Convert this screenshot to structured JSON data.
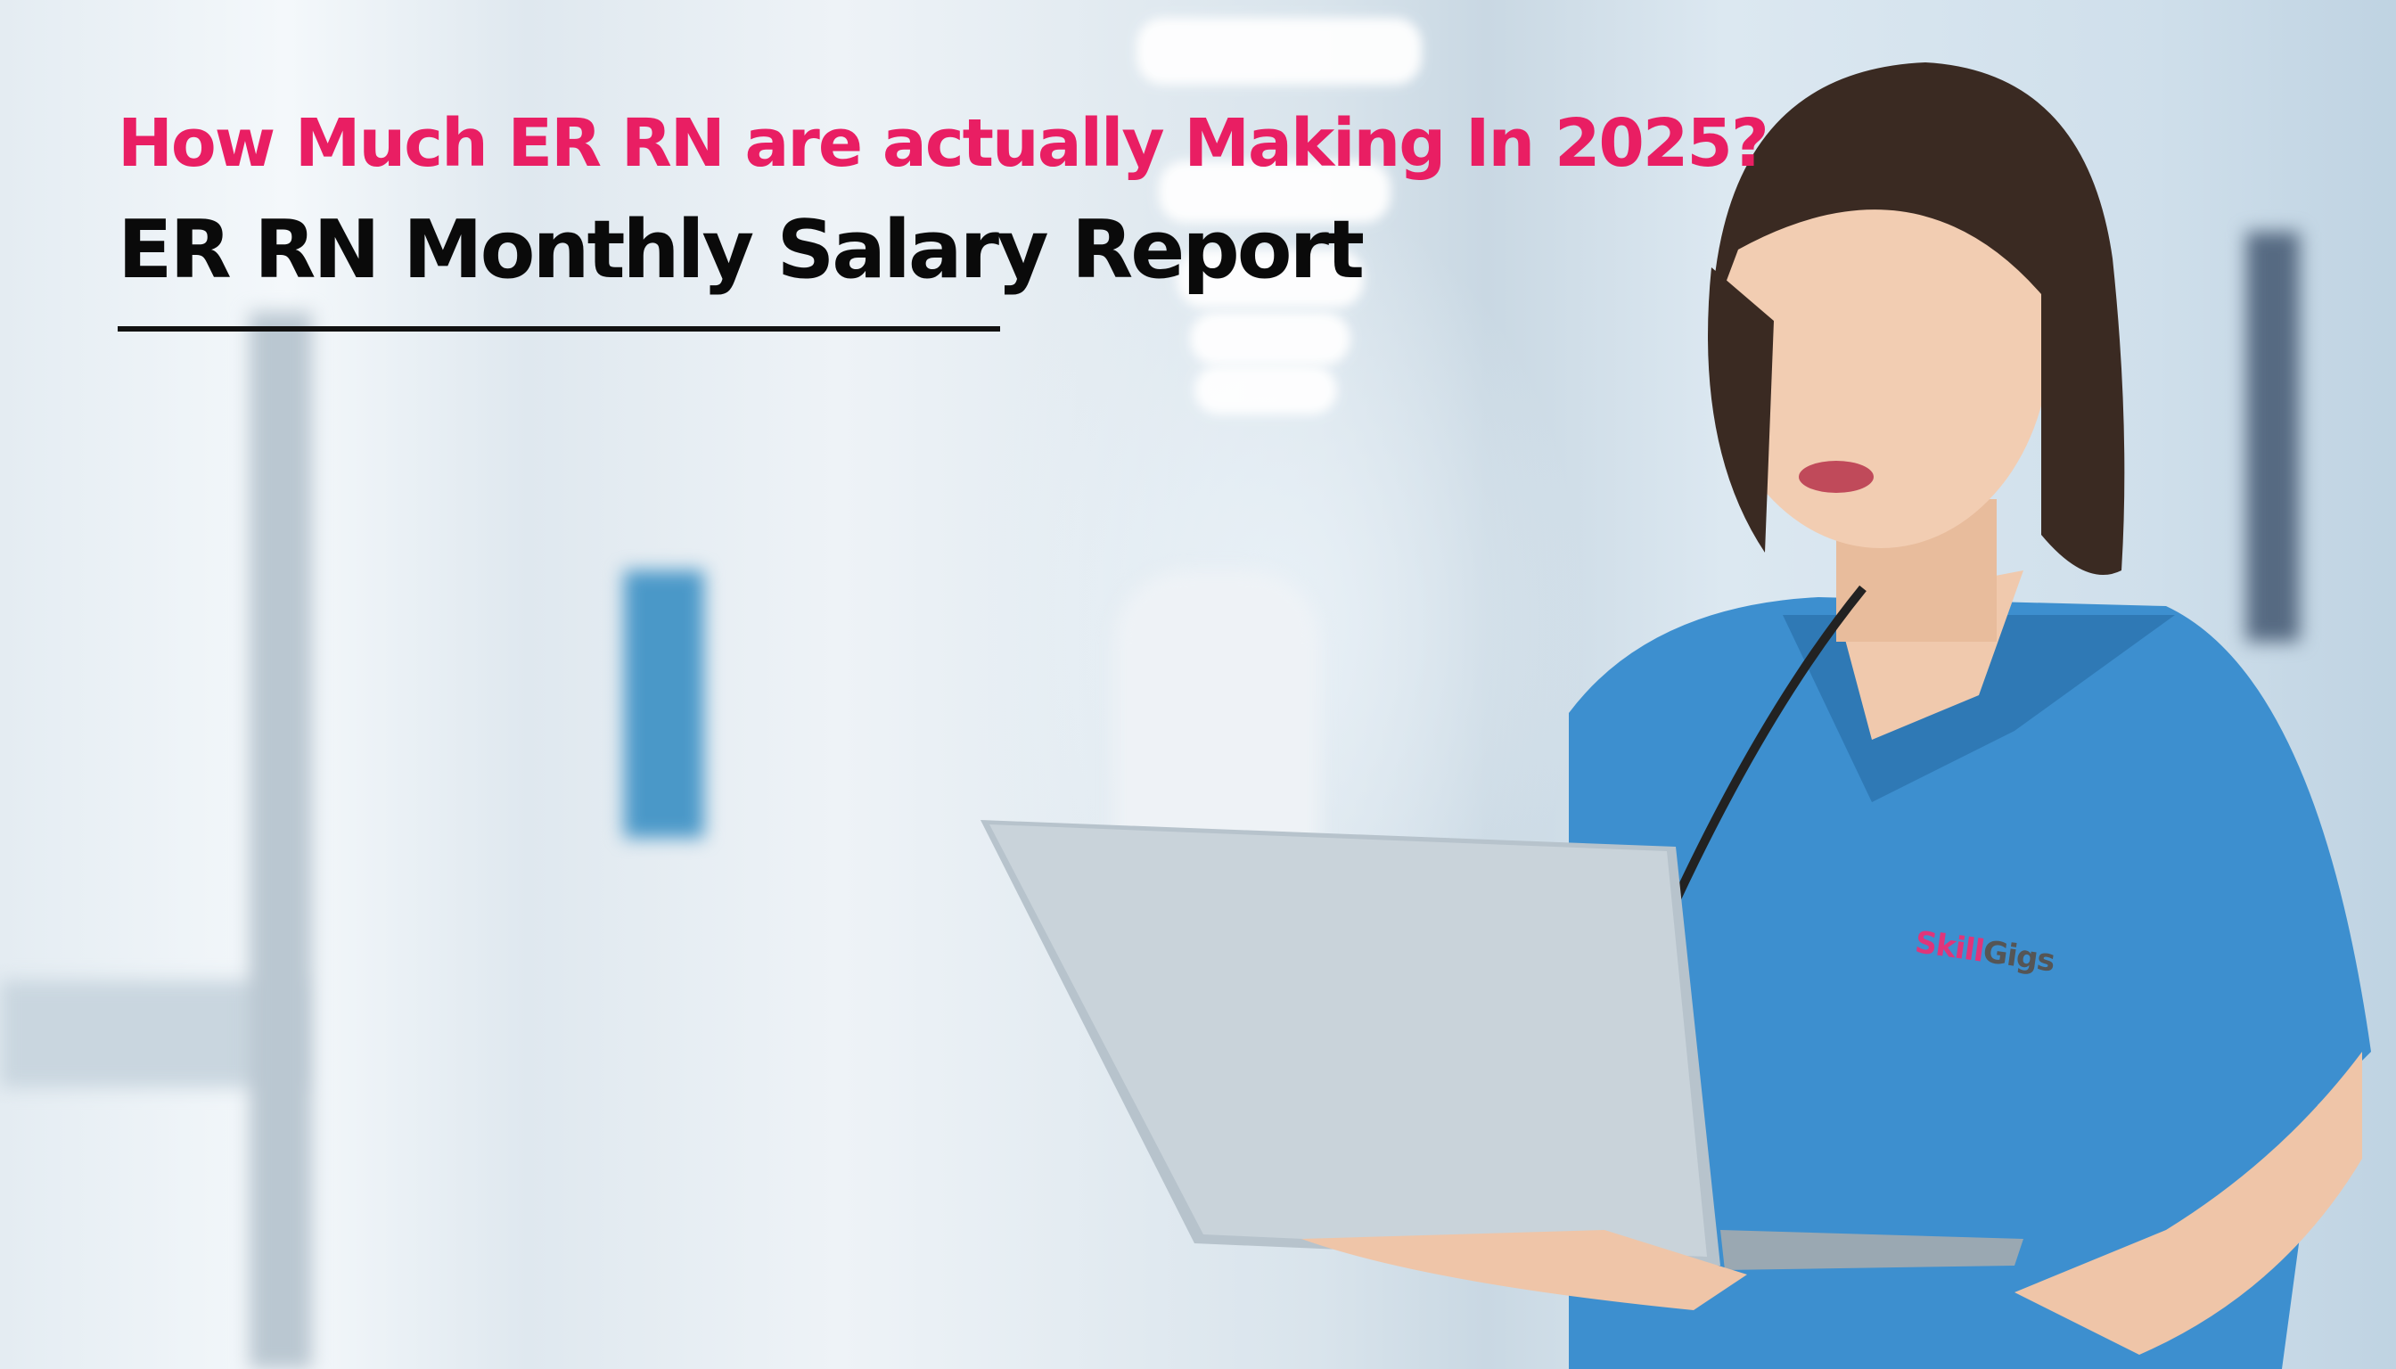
{
  "banner": {
    "headline": "How Much ER RN are actually Making In 2025?",
    "title": "ER RN Monthly Salary Report",
    "logo": {
      "part1": "Skill",
      "part2": "Gigs"
    },
    "colors": {
      "headline": "#e91e63",
      "title": "#0a0a0a",
      "scrubs": "#3d8fcf"
    }
  }
}
